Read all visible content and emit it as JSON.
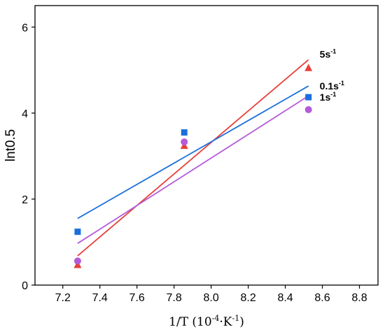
{
  "chart_data": {
    "type": "scatter",
    "title": "",
    "xlabel": {
      "base": "1/T (10",
      "exp1": "-4",
      "mid": "·K",
      "exp2": "-1",
      "end": ")"
    },
    "ylabel": "lnt0.5",
    "xlim": [
      7.05,
      8.9
    ],
    "ylim": [
      0,
      6.5
    ],
    "xticks": [
      "7.2",
      "7.4",
      "7.6",
      "7.8",
      "8.0",
      "8.2",
      "8.4",
      "8.6",
      "8.8"
    ],
    "yticks": [
      "0",
      "2",
      "4",
      "6"
    ],
    "grid": false,
    "legend_placement": "labels next to fit-line ends, right",
    "series": [
      {
        "name_main": "5s",
        "name_exp": "-1",
        "marker": "triangle",
        "color": "#e8403a",
        "x": [
          7.28,
          7.855,
          8.525
        ],
        "y": [
          0.47,
          3.24,
          5.05
        ],
        "fit": {
          "x": [
            7.28,
            8.525
          ],
          "y": [
            0.68,
            5.24
          ]
        }
      },
      {
        "name_main": "0.1s",
        "name_exp": "-1",
        "marker": "square",
        "color": "#1a6fdb",
        "x": [
          7.28,
          7.855,
          8.525
        ],
        "y": [
          1.24,
          3.55,
          4.37
        ],
        "fit": {
          "x": [
            7.28,
            8.525
          ],
          "y": [
            1.55,
            4.63
          ]
        }
      },
      {
        "name_main": "1s",
        "name_exp": "-1",
        "marker": "circle",
        "color": "#b55ad8",
        "x": [
          7.28,
          7.855,
          8.525
        ],
        "y": [
          0.56,
          3.33,
          4.08
        ],
        "fit": {
          "x": [
            7.28,
            8.525
          ],
          "y": [
            0.97,
            4.4
          ]
        }
      }
    ]
  }
}
